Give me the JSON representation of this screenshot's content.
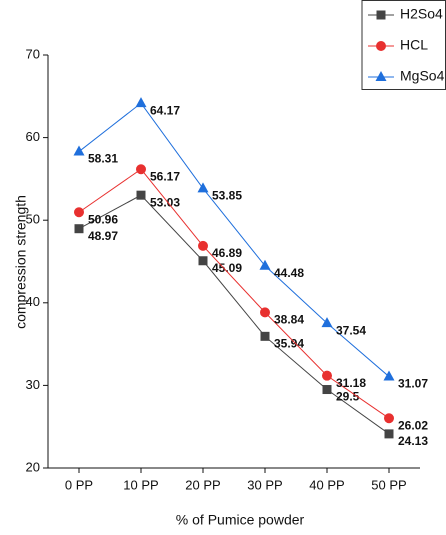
{
  "chart_data": {
    "type": "line",
    "x_label": "% of Pumice powder",
    "y_label": "compression strength",
    "categories": [
      "0 PP",
      "10 PP",
      "20 PP",
      "30 PP",
      "40 PP",
      "50 PP"
    ],
    "series": [
      {
        "name": "H2So4",
        "color": "#444444",
        "marker": "square",
        "values": [
          48.97,
          53.03,
          45.09,
          35.94,
          29.5,
          24.13
        ]
      },
      {
        "name": "HCL",
        "color": "#e8302f",
        "marker": "circle",
        "values": [
          50.96,
          56.17,
          46.89,
          38.84,
          31.18,
          26.02
        ]
      },
      {
        "name": "MgSo4",
        "color": "#1f6fdc",
        "marker": "triangle",
        "values": [
          58.31,
          64.17,
          53.85,
          44.48,
          37.54,
          31.07
        ]
      }
    ],
    "ylim": [
      20,
      70
    ],
    "yticks": [
      20,
      30,
      40,
      50,
      60,
      70
    ],
    "legend": "upper right"
  }
}
